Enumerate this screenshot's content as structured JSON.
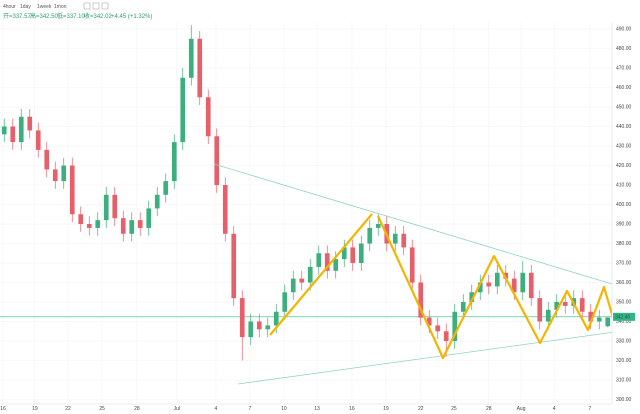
{
  "header": {
    "tabs": [
      "4hour",
      "1day",
      "1week",
      "1mon"
    ],
    "ohlc": [
      "开=337.57",
      "高=342.50",
      "低=337.10",
      "收=342.02",
      "+4.45 (+1.32%)"
    ]
  },
  "chart_data": {
    "type": "candlestick",
    "xlim": [
      0,
      72
    ],
    "xticks": [
      {
        "value": 0.35,
        "label": "16"
      },
      {
        "value": 4.1,
        "label": "19"
      },
      {
        "value": 8,
        "label": "22"
      },
      {
        "value": 12,
        "label": "25"
      },
      {
        "value": 16.1,
        "label": "28"
      },
      {
        "value": 20.8,
        "label": "Jul"
      },
      {
        "value": 25.4,
        "label": "4"
      },
      {
        "value": 29.4,
        "label": "7"
      },
      {
        "value": 33.4,
        "label": "10"
      },
      {
        "value": 37.3,
        "label": "13"
      },
      {
        "value": 41.4,
        "label": "16"
      },
      {
        "value": 45.4,
        "label": "19"
      },
      {
        "value": 49.5,
        "label": "22"
      },
      {
        "value": 53.4,
        "label": "25"
      },
      {
        "value": 57.5,
        "label": "28"
      },
      {
        "value": 61.3,
        "label": "Aug"
      },
      {
        "value": 65.2,
        "label": "4"
      },
      {
        "value": 69.4,
        "label": "7"
      }
    ],
    "ylim": [
      297.7,
      493.6
    ],
    "yticks": [
      {
        "value": 300,
        "label": "300.00"
      },
      {
        "value": 310,
        "label": "310.00"
      },
      {
        "value": 320,
        "label": "320.00"
      },
      {
        "value": 330,
        "label": "330.00"
      },
      {
        "value": 340,
        "label": "340.00"
      },
      {
        "value": 350,
        "label": "350.00"
      },
      {
        "value": 360,
        "label": "360.00"
      },
      {
        "value": 370,
        "label": "370.00"
      },
      {
        "value": 380,
        "label": "380.00"
      },
      {
        "value": 390,
        "label": "390.00"
      },
      {
        "value": 400,
        "label": "400.00"
      },
      {
        "value": 410,
        "label": "410.00"
      },
      {
        "value": 420,
        "label": "420.00"
      },
      {
        "value": 430,
        "label": "430.00"
      },
      {
        "value": 440,
        "label": "440.00"
      },
      {
        "value": 450,
        "label": "450.00"
      },
      {
        "value": 460,
        "label": "460.00"
      },
      {
        "value": 470,
        "label": "470.00"
      },
      {
        "value": 480,
        "label": "480.00"
      },
      {
        "value": 490,
        "label": "490.00"
      }
    ],
    "grid": true,
    "up_color": "#3dae7d",
    "down_color": "#e5606b",
    "price_line": {
      "value": 342.4,
      "label": "342.40",
      "color": "#2eb88a"
    },
    "open": [
      436,
      440,
      432,
      445,
      438,
      428,
      418,
      412,
      420,
      395,
      390,
      388,
      392,
      405,
      393,
      385,
      392,
      388,
      398,
      405,
      412,
      432,
      465,
      485,
      455,
      435,
      410,
      385,
      352,
      332,
      340,
      336,
      338,
      345,
      355,
      362,
      360,
      368,
      375,
      366,
      372,
      378,
      370,
      380,
      388,
      390,
      380,
      385,
      378,
      360,
      342,
      338,
      335,
      330,
      345,
      350,
      355,
      360,
      358,
      365,
      362,
      355,
      365,
      352,
      340,
      346,
      350,
      348,
      352,
      345,
      340,
      337.57
    ],
    "high": [
      444,
      444,
      449,
      449,
      442,
      432,
      422,
      424,
      424,
      399,
      394,
      396,
      409,
      409,
      397,
      396,
      396,
      402,
      409,
      416,
      436,
      470,
      492,
      489,
      459,
      439,
      414,
      389,
      356,
      344,
      344,
      342,
      349,
      359,
      366,
      366,
      372,
      379,
      379,
      376,
      382,
      382,
      384,
      392,
      395,
      394,
      389,
      389,
      382,
      364,
      346,
      342,
      339,
      349,
      354,
      359,
      364,
      364,
      369,
      369,
      366,
      371,
      369,
      356,
      350,
      354,
      354,
      356,
      356,
      349,
      346,
      342.5
    ],
    "low": [
      432,
      428,
      428,
      434,
      424,
      414,
      408,
      408,
      391,
      386,
      384,
      384,
      388,
      389,
      381,
      381,
      384,
      384,
      394,
      401,
      408,
      428,
      461,
      451,
      431,
      406,
      381,
      348,
      320,
      328,
      332,
      332,
      334,
      341,
      351,
      356,
      356,
      364,
      362,
      362,
      368,
      366,
      366,
      376,
      384,
      376,
      376,
      374,
      356,
      338,
      334,
      331,
      322,
      326,
      341,
      346,
      351,
      354,
      354,
      358,
      351,
      351,
      348,
      336,
      336,
      342,
      344,
      344,
      341,
      336,
      336,
      337.1
    ],
    "close": [
      440,
      432,
      445,
      438,
      428,
      418,
      412,
      420,
      395,
      390,
      388,
      392,
      405,
      393,
      385,
      392,
      388,
      398,
      405,
      412,
      432,
      465,
      485,
      455,
      435,
      410,
      385,
      352,
      332,
      340,
      336,
      338,
      345,
      355,
      362,
      360,
      368,
      375,
      366,
      372,
      378,
      370,
      380,
      388,
      390,
      380,
      385,
      378,
      360,
      342,
      338,
      335,
      330,
      345,
      350,
      355,
      360,
      358,
      365,
      362,
      355,
      365,
      352,
      340,
      346,
      350,
      348,
      352,
      345,
      340,
      342,
      342.02
    ]
  }
}
